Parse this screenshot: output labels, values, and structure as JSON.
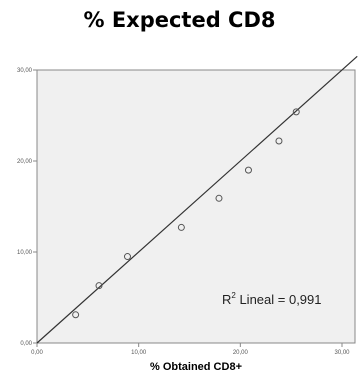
{
  "chart_data": {
    "type": "scatter",
    "title": "% Expected CD8",
    "xlabel": "% Obtained CD8+",
    "ylabel": "",
    "xlim": [
      0,
      30
    ],
    "ylim": [
      0,
      30
    ],
    "xticks": [
      "0,00",
      "10,00",
      "20,00",
      "30,00"
    ],
    "yticks": [
      "0,00",
      "10,00",
      "20,00",
      "30,00"
    ],
    "x": [
      3.8,
      6.1,
      8.9,
      14.2,
      17.9,
      20.8,
      23.8,
      25.5
    ],
    "y": [
      3.1,
      6.3,
      9.5,
      12.7,
      15.9,
      19.0,
      22.2,
      25.4
    ],
    "fit_line": {
      "x": [
        0,
        31.5
      ],
      "y": [
        0,
        31.5
      ]
    },
    "annotation": {
      "r2_label": "R",
      "r2_sup": "2",
      "r2_text": " Lineal = 0,991"
    },
    "grid": false,
    "legend": "none",
    "colors": {
      "background": "#f0f0f0",
      "points": "#555555",
      "line": "#333333",
      "axis": "#888888"
    }
  }
}
